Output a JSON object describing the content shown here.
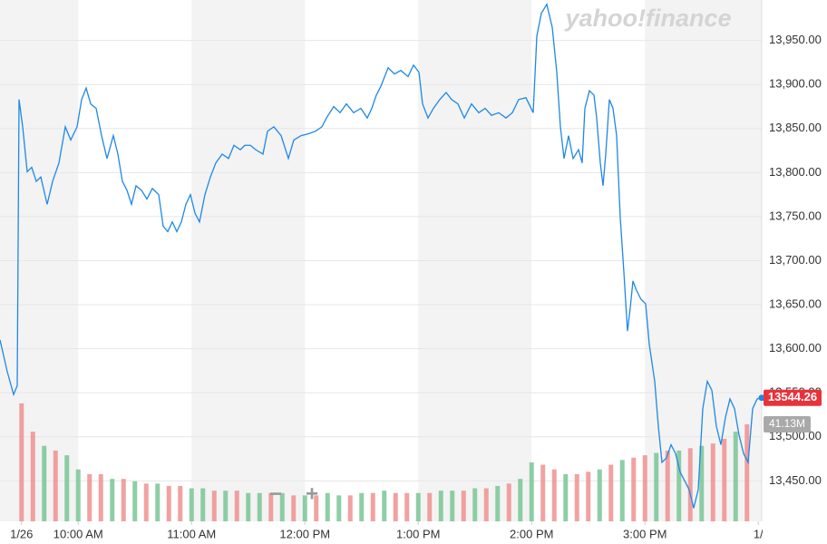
{
  "chart_data": {
    "type": "line",
    "xlim": [
      9.31,
      16.03
    ],
    "xticks": [
      {
        "value": 9.5,
        "label": "1/26"
      },
      {
        "value": 10,
        "label": "10:00 AM"
      },
      {
        "value": 11,
        "label": "11:00 AM"
      },
      {
        "value": 12,
        "label": "12:00 PM"
      },
      {
        "value": 13,
        "label": "1:00 PM"
      },
      {
        "value": 14,
        "label": "2:00 PM"
      },
      {
        "value": 15,
        "label": "3:00 PM"
      },
      {
        "value": 16,
        "label": "1/"
      }
    ],
    "ylim": [
      13404,
      13996
    ],
    "yticks": [
      {
        "value": 13450,
        "label": "13,450.00"
      },
      {
        "value": 13500,
        "label": "13,500.00"
      },
      {
        "value": 13550,
        "label": "13,550.00"
      },
      {
        "value": 13600,
        "label": "13,600.00"
      },
      {
        "value": 13650,
        "label": "13,650.00"
      },
      {
        "value": 13700,
        "label": "13,700.00"
      },
      {
        "value": 13750,
        "label": "13,750.00"
      },
      {
        "value": 13800,
        "label": "13,800.00"
      },
      {
        "value": 13850,
        "label": "13,850.00"
      },
      {
        "value": 13900,
        "label": "13,900.00"
      },
      {
        "value": 13950,
        "label": "13,950.00"
      }
    ],
    "y2lim": [
      0,
      221
    ],
    "grid": true,
    "series": [
      {
        "type": "line",
        "color": "#1e88e5",
        "x": [
          9.31,
          9.374,
          9.43,
          9.462,
          9.478,
          9.51,
          9.55,
          9.59,
          9.63,
          9.67,
          9.726,
          9.774,
          9.83,
          9.886,
          9.934,
          9.99,
          10.03,
          10.07,
          10.11,
          10.158,
          10.206,
          10.254,
          10.31,
          10.35,
          10.39,
          10.43,
          10.47,
          10.51,
          10.558,
          10.606,
          10.654,
          10.71,
          10.75,
          10.79,
          10.83,
          10.87,
          10.91,
          10.95,
          10.99,
          11.03,
          11.07,
          11.118,
          11.166,
          11.214,
          11.27,
          11.326,
          11.374,
          11.43,
          11.47,
          11.518,
          11.566,
          11.63,
          11.67,
          11.726,
          11.79,
          11.854,
          11.902,
          11.966,
          12.03,
          12.094,
          12.15,
          12.19,
          12.254,
          12.31,
          12.366,
          12.43,
          12.494,
          12.55,
          12.59,
          12.63,
          12.67,
          12.734,
          12.79,
          12.846,
          12.91,
          12.958,
          13.006,
          13.038,
          13.086,
          13.134,
          13.19,
          13.246,
          13.294,
          13.35,
          13.406,
          13.47,
          13.534,
          13.59,
          13.646,
          13.71,
          13.774,
          13.83,
          13.886,
          13.95,
          14.014,
          14.046,
          14.086,
          14.134,
          14.182,
          14.222,
          14.254,
          14.286,
          14.326,
          14.366,
          14.414,
          14.446,
          14.47,
          14.51,
          14.55,
          14.574,
          14.606,
          14.63,
          14.654,
          14.686,
          14.718,
          14.75,
          14.782,
          14.814,
          14.846,
          14.87,
          14.894,
          14.926,
          14.966,
          15.006,
          15.038,
          15.086,
          15.118,
          15.15,
          15.19,
          15.23,
          15.27,
          15.31,
          15.35,
          15.39,
          15.43,
          15.47,
          15.51,
          15.55,
          15.59,
          15.63,
          15.67,
          15.71,
          15.75,
          15.79,
          15.83,
          15.87,
          15.91,
          15.95,
          15.99,
          16.03
        ],
        "values": [
          13610,
          13574,
          13548,
          13558,
          13883,
          13852,
          13801,
          13806,
          13790,
          13795,
          13764,
          13790,
          13811,
          13852,
          13837,
          13852,
          13883,
          13896,
          13878,
          13873,
          13842,
          13816,
          13842,
          13821,
          13790,
          13780,
          13764,
          13785,
          13780,
          13770,
          13782,
          13775,
          13739,
          13733,
          13744,
          13733,
          13744,
          13764,
          13775,
          13754,
          13744,
          13775,
          13795,
          13811,
          13821,
          13816,
          13831,
          13826,
          13831,
          13831,
          13826,
          13821,
          13847,
          13852,
          13842,
          13816,
          13837,
          13842,
          13844,
          13847,
          13852,
          13862,
          13875,
          13868,
          13878,
          13868,
          13873,
          13862,
          13873,
          13888,
          13898,
          13919,
          13912,
          13916,
          13909,
          13922,
          13914,
          13878,
          13862,
          13873,
          13883,
          13891,
          13883,
          13878,
          13862,
          13878,
          13868,
          13873,
          13865,
          13868,
          13862,
          13868,
          13883,
          13885,
          13868,
          13955,
          13981,
          13991,
          13965,
          13914,
          13852,
          13816,
          13842,
          13816,
          13826,
          13811,
          13873,
          13893,
          13888,
          13862,
          13811,
          13785,
          13821,
          13883,
          13873,
          13842,
          13749,
          13687,
          13620,
          13646,
          13677,
          13666,
          13656,
          13651,
          13605,
          13563,
          13512,
          13471,
          13476,
          13491,
          13481,
          13460,
          13450,
          13440,
          13419,
          13440,
          13532,
          13563,
          13553,
          13512,
          13491,
          13522,
          13543,
          13532,
          13502,
          13481,
          13471,
          13532,
          13543,
          13544.26
        ]
      },
      {
        "type": "bar",
        "axis": "y2",
        "x": [
          9.5,
          9.6,
          9.7,
          9.8,
          9.9,
          10.0,
          10.1,
          10.2,
          10.3,
          10.4,
          10.5,
          10.6,
          10.7,
          10.8,
          10.9,
          11.0,
          11.1,
          11.2,
          11.3,
          11.4,
          11.5,
          11.6,
          11.7,
          11.8,
          11.9,
          12.0,
          12.1,
          12.2,
          12.3,
          12.4,
          12.5,
          12.6,
          12.7,
          12.8,
          12.9,
          13.0,
          13.1,
          13.2,
          13.3,
          13.4,
          13.5,
          13.6,
          13.7,
          13.8,
          13.9,
          14.0,
          14.1,
          14.2,
          14.3,
          14.4,
          14.5,
          14.6,
          14.7,
          14.8,
          14.9,
          15.0,
          15.1,
          15.2,
          15.3,
          15.4,
          15.5,
          15.6,
          15.7,
          15.8,
          15.9
        ],
        "values": [
          50,
          38,
          32,
          30,
          28,
          22,
          20,
          20,
          18,
          18,
          17,
          16,
          16,
          15,
          15,
          14,
          14,
          13,
          13,
          13,
          12,
          12,
          12,
          12,
          11,
          11,
          11,
          12,
          11,
          11,
          12,
          12,
          13,
          12,
          12,
          12,
          12,
          13,
          13,
          13,
          14,
          14,
          15,
          16,
          18,
          25,
          24,
          22,
          20,
          20,
          21,
          22,
          24,
          26,
          27,
          28,
          29,
          30,
          30,
          31,
          32,
          33,
          35,
          38,
          41.13
        ],
        "colors": [
          "#ef8a8a",
          "#ef8a8a",
          "#72c28e",
          "#ef8a8a",
          "#72c28e",
          "#72c28e",
          "#ef8a8a",
          "#ef8a8a",
          "#72c28e",
          "#ef8a8a",
          "#72c28e",
          "#ef8a8a",
          "#72c28e",
          "#ef8a8a",
          "#ef8a8a",
          "#72c28e",
          "#72c28e",
          "#ef8a8a",
          "#72c28e",
          "#ef8a8a",
          "#72c28e",
          "#72c28e",
          "#ef8a8a",
          "#72c28e",
          "#ef8a8a",
          "#72c28e",
          "#ef8a8a",
          "#72c28e",
          "#72c28e",
          "#ef8a8a",
          "#72c28e",
          "#ef8a8a",
          "#72c28e",
          "#ef8a8a",
          "#ef8a8a",
          "#72c28e",
          "#ef8a8a",
          "#72c28e",
          "#72c28e",
          "#ef8a8a",
          "#72c28e",
          "#ef8a8a",
          "#72c28e",
          "#ef8a8a",
          "#72c28e",
          "#72c28e",
          "#ef8a8a",
          "#ef8a8a",
          "#72c28e",
          "#ef8a8a",
          "#ef8a8a",
          "#72c28e",
          "#ef8a8a",
          "#72c28e",
          "#ef8a8a",
          "#ef8a8a",
          "#72c28e",
          "#ef8a8a",
          "#72c28e",
          "#ef8a8a",
          "#72c28e",
          "#ef8a8a",
          "#ef8a8a",
          "#72c28e",
          "#ef8a8a"
        ]
      }
    ],
    "last_price": {
      "value": 13544.26,
      "color": "#e8333b"
    },
    "volume_label": "41.13M",
    "band_color": "#f3f3f3"
  },
  "watermark": "yahoo!finance",
  "controls": {
    "zoom_out": "−",
    "zoom_in": "+"
  }
}
